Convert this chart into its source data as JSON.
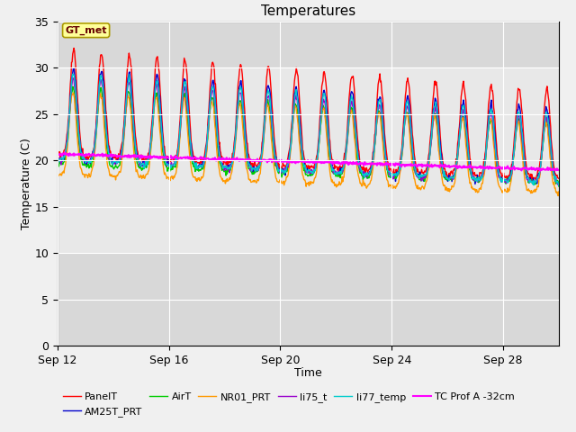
{
  "title": "Temperatures",
  "xlabel": "Time",
  "ylabel": "Temperature (C)",
  "ylim": [
    0,
    35
  ],
  "yticks": [
    0,
    5,
    10,
    15,
    20,
    25,
    30,
    35
  ],
  "xtick_days": [
    0,
    4,
    8,
    12,
    16
  ],
  "xtick_labels": [
    "Sep 12",
    "Sep 16",
    "Sep 20",
    "Sep 24",
    "Sep 28"
  ],
  "n_days": 18,
  "background_fig": "#f0f0f0",
  "background_plot": "#d8d8d8",
  "background_band_light": "#e8e8e8",
  "series": [
    {
      "name": "PanelT",
      "color": "#ff0000",
      "lw": 1.0
    },
    {
      "name": "AM25T_PRT",
      "color": "#0000cc",
      "lw": 1.0
    },
    {
      "name": "AirT",
      "color": "#00cc00",
      "lw": 1.0
    },
    {
      "name": "NR01_PRT",
      "color": "#ff9900",
      "lw": 1.0
    },
    {
      "name": "li75_t",
      "color": "#9900cc",
      "lw": 1.0
    },
    {
      "name": "li77_temp",
      "color": "#00cccc",
      "lw": 1.0
    },
    {
      "name": "TC Prof A -32cm",
      "color": "#ff00ff",
      "lw": 1.5
    }
  ],
  "gt_met_box_color": "#ffff99",
  "gt_met_text_color": "#660000",
  "gt_met_border_color": "#aa9900",
  "figsize": [
    6.4,
    4.8
  ],
  "dpi": 100
}
